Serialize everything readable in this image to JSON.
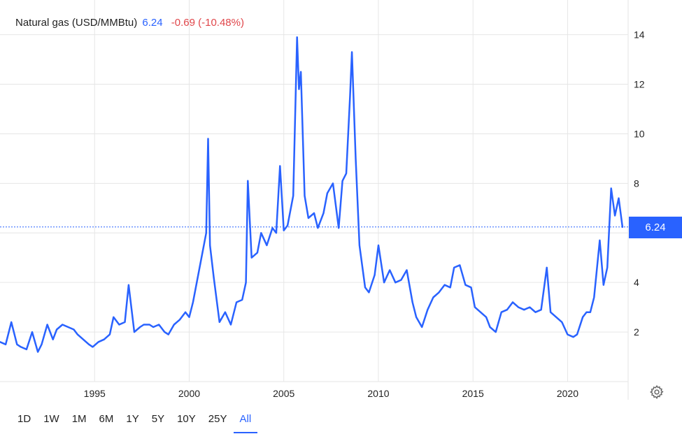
{
  "header": {
    "title": "Natural gas (USD/MMBtu)",
    "price": "6.24",
    "change": "-0.69 (-10.48%)"
  },
  "ranges": [
    {
      "label": "1D",
      "active": false
    },
    {
      "label": "1W",
      "active": false
    },
    {
      "label": "1M",
      "active": false
    },
    {
      "label": "6M",
      "active": false
    },
    {
      "label": "1Y",
      "active": false
    },
    {
      "label": "5Y",
      "active": false
    },
    {
      "label": "10Y",
      "active": false
    },
    {
      "label": "25Y",
      "active": false
    },
    {
      "label": "All",
      "active": true
    }
  ],
  "badge": {
    "value": "6.24"
  },
  "colors": {
    "line": "#2962ff",
    "change_down": "#e0464a",
    "grid": "#e6e6e6"
  },
  "icons": {
    "settings": "gear-icon"
  },
  "chart_data": {
    "type": "line",
    "title": "",
    "xlabel": "",
    "ylabel": "",
    "xlim": [
      1990.0,
      2023.2
    ],
    "ylim": [
      0,
      15.4
    ],
    "x_ticks": [
      1995,
      2000,
      2005,
      2010,
      2015,
      2020
    ],
    "x_tick_labels": [
      "1995",
      "2000",
      "2005",
      "2010",
      "2015",
      "2020"
    ],
    "y_ticks": [
      2,
      4,
      6,
      8,
      10,
      12,
      14
    ],
    "y_tick_labels": [
      "2",
      "4",
      "6",
      "8",
      "10",
      "12",
      "14"
    ],
    "last_value": 6.24,
    "grid": true,
    "series": [
      {
        "name": "",
        "x": [
          1990.0,
          1990.3,
          1990.6,
          1990.9,
          1991.1,
          1991.4,
          1991.7,
          1992.0,
          1992.2,
          1992.5,
          1992.8,
          1993.0,
          1993.3,
          1993.6,
          1993.9,
          1994.1,
          1994.4,
          1994.7,
          1994.9,
          1995.2,
          1995.5,
          1995.8,
          1996.0,
          1996.3,
          1996.6,
          1996.8,
          1997.1,
          1997.4,
          1997.6,
          1997.9,
          1998.1,
          1998.4,
          1998.7,
          1998.9,
          1999.2,
          1999.5,
          1999.8,
          2000.0,
          2000.2,
          2000.5,
          2000.7,
          2000.9,
          2001.0,
          2001.1,
          2001.3,
          2001.6,
          2001.9,
          2002.2,
          2002.5,
          2002.8,
          2003.0,
          2003.1,
          2003.3,
          2003.6,
          2003.8,
          2004.1,
          2004.4,
          2004.6,
          2004.8,
          2005.0,
          2005.2,
          2005.5,
          2005.7,
          2005.8,
          2005.9,
          2006.1,
          2006.3,
          2006.6,
          2006.8,
          2007.1,
          2007.3,
          2007.6,
          2007.9,
          2008.1,
          2008.3,
          2008.5,
          2008.6,
          2008.8,
          2009.0,
          2009.3,
          2009.5,
          2009.8,
          2010.0,
          2010.3,
          2010.6,
          2010.9,
          2011.2,
          2011.5,
          2011.8,
          2012.0,
          2012.3,
          2012.6,
          2012.9,
          2013.2,
          2013.5,
          2013.8,
          2014.0,
          2014.3,
          2014.6,
          2014.9,
          2015.1,
          2015.4,
          2015.7,
          2015.9,
          2016.2,
          2016.5,
          2016.8,
          2017.1,
          2017.4,
          2017.7,
          2018.0,
          2018.3,
          2018.6,
          2018.9,
          2019.1,
          2019.4,
          2019.7,
          2020.0,
          2020.3,
          2020.5,
          2020.8,
          2021.0,
          2021.2,
          2021.4,
          2021.7,
          2021.9,
          2022.1,
          2022.3,
          2022.5,
          2022.7,
          2022.9
        ],
        "y": [
          1.6,
          1.5,
          2.4,
          1.5,
          1.4,
          1.3,
          2.0,
          1.2,
          1.5,
          2.3,
          1.7,
          2.1,
          2.3,
          2.2,
          2.1,
          1.9,
          1.7,
          1.5,
          1.4,
          1.6,
          1.7,
          1.9,
          2.6,
          2.3,
          2.4,
          3.9,
          2.0,
          2.2,
          2.3,
          2.3,
          2.2,
          2.3,
          2.0,
          1.9,
          2.3,
          2.5,
          2.8,
          2.6,
          3.2,
          4.4,
          5.2,
          6.0,
          9.8,
          5.5,
          4.2,
          2.4,
          2.8,
          2.3,
          3.2,
          3.3,
          4.0,
          8.1,
          5.0,
          5.2,
          6.0,
          5.5,
          6.2,
          6.0,
          8.7,
          6.1,
          6.3,
          7.5,
          13.9,
          11.8,
          12.5,
          7.5,
          6.6,
          6.8,
          6.2,
          6.8,
          7.6,
          8.0,
          6.2,
          8.1,
          8.4,
          11.5,
          13.3,
          9.0,
          5.5,
          3.8,
          3.6,
          4.3,
          5.5,
          4.0,
          4.5,
          4.0,
          4.1,
          4.5,
          3.2,
          2.6,
          2.2,
          2.9,
          3.4,
          3.6,
          3.9,
          3.8,
          4.6,
          4.7,
          3.9,
          3.8,
          3.0,
          2.8,
          2.6,
          2.2,
          2.0,
          2.8,
          2.9,
          3.2,
          3.0,
          2.9,
          3.0,
          2.8,
          2.9,
          4.6,
          2.8,
          2.6,
          2.4,
          1.9,
          1.8,
          1.9,
          2.6,
          2.8,
          2.8,
          3.4,
          5.7,
          3.9,
          4.6,
          7.8,
          6.7,
          7.4,
          6.24
        ]
      }
    ]
  }
}
